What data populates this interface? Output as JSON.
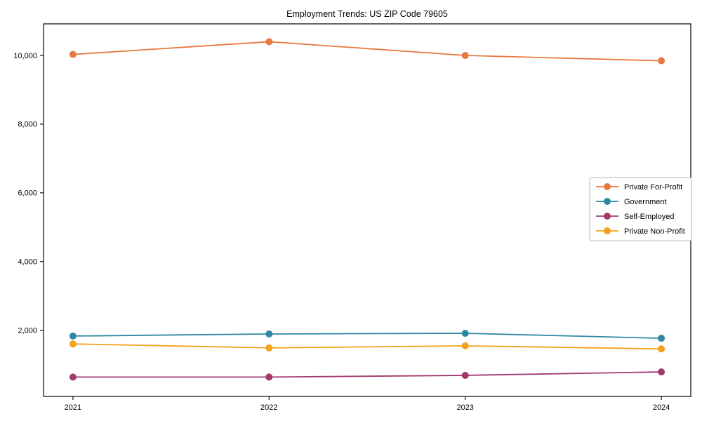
{
  "chart_data": {
    "type": "line",
    "title": "Employment Trends: US ZIP Code 79605",
    "xlabel": "",
    "ylabel": "",
    "x": [
      2021,
      2022,
      2023,
      2024
    ],
    "xtick_labels": [
      "2021",
      "2022",
      "2023",
      "2024"
    ],
    "yticks": [
      2000,
      4000,
      6000,
      8000,
      10000
    ],
    "ytick_labels": [
      "2,000",
      "4,000",
      "6,000",
      "8,000",
      "10,000"
    ],
    "xlim": [
      2020.85,
      2024.15
    ],
    "ylim": [
      71,
      10920
    ],
    "grid": false,
    "marker": "circle",
    "legend": {
      "position": "center-right",
      "border_color": "#b8b8b8",
      "background": "#ffffff"
    },
    "series": [
      {
        "name": "Private For-Profit",
        "color": "#E8793F",
        "values": [
          10030,
          10400,
          10000,
          9845
        ]
      },
      {
        "name": "Government",
        "color": "#2E87A3",
        "values": [
          1830,
          1890,
          1910,
          1765
        ]
      },
      {
        "name": "Self-Employed",
        "color": "#A23A70",
        "values": [
          635,
          635,
          685,
          785
        ]
      },
      {
        "name": "Private Non-Profit",
        "color": "#F5A11E",
        "values": [
          1600,
          1485,
          1545,
          1455
        ]
      }
    ],
    "axis_color": "#000000"
  }
}
